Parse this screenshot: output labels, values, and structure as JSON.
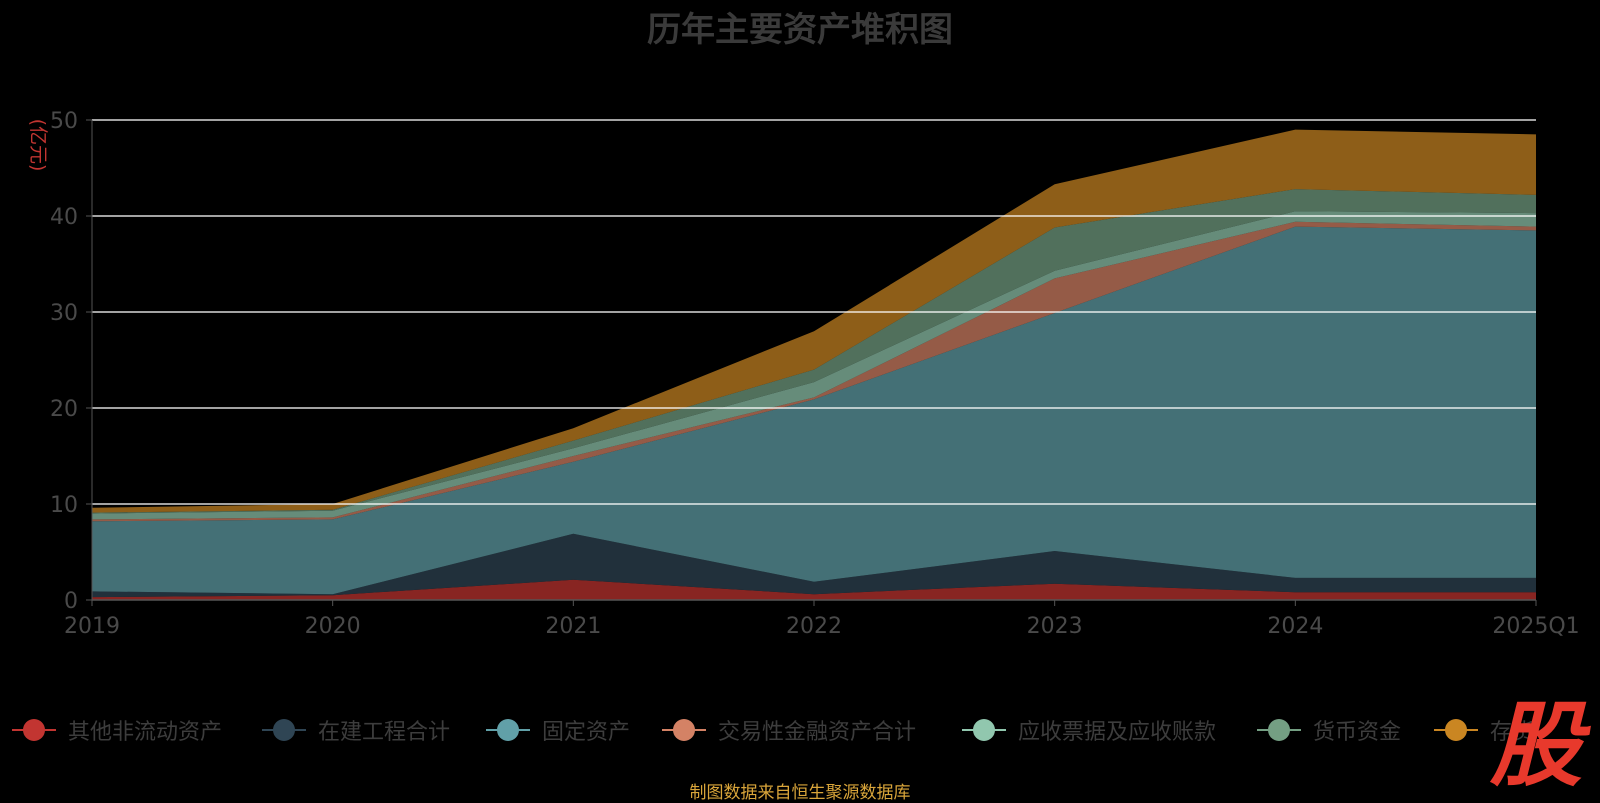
{
  "chart_data": {
    "type": "area",
    "title": "历年主要资产堆积图",
    "ylabel": "(亿元)",
    "ylim": [
      0,
      50
    ],
    "yticks": [
      0,
      10,
      20,
      30,
      40,
      50
    ],
    "categories": [
      "2019",
      "2020",
      "2021",
      "2022",
      "2023",
      "2024",
      "2025Q1"
    ],
    "stacked": true,
    "grid": true,
    "legend_position": "bottom",
    "series": [
      {
        "name": "其他非流动资产",
        "color": "#c23531",
        "values": [
          0.3,
          0.5,
          2.1,
          0.6,
          1.7,
          0.8,
          0.8
        ]
      },
      {
        "name": "在建工程合计",
        "color": "#2f4554",
        "values": [
          0.6,
          0.1,
          4.8,
          1.3,
          3.4,
          1.5,
          1.5
        ]
      },
      {
        "name": "固定资产",
        "color": "#61a0a8",
        "values": [
          7.3,
          7.8,
          7.5,
          19.0,
          24.8,
          36.6,
          36.2
        ]
      },
      {
        "name": "交易性金融资产合计",
        "color": "#d48265",
        "values": [
          0.2,
          0.2,
          0.6,
          0.2,
          3.6,
          0.5,
          0.4
        ]
      },
      {
        "name": "应收票据及应收账款",
        "color": "#91c7ae",
        "values": [
          0.6,
          0.7,
          0.8,
          1.6,
          0.8,
          1.1,
          1.4
        ]
      },
      {
        "name": "货币资金",
        "color": "#749f83",
        "values": [
          0.1,
          0.1,
          0.8,
          1.3,
          4.5,
          2.3,
          1.9
        ]
      },
      {
        "name": "存货",
        "color": "#ca8622",
        "values": [
          0.5,
          0.6,
          1.3,
          4.0,
          4.5,
          6.2,
          6.3
        ]
      }
    ]
  },
  "source_note": "制图数据来自恒生聚源数据库",
  "watermark": "股"
}
